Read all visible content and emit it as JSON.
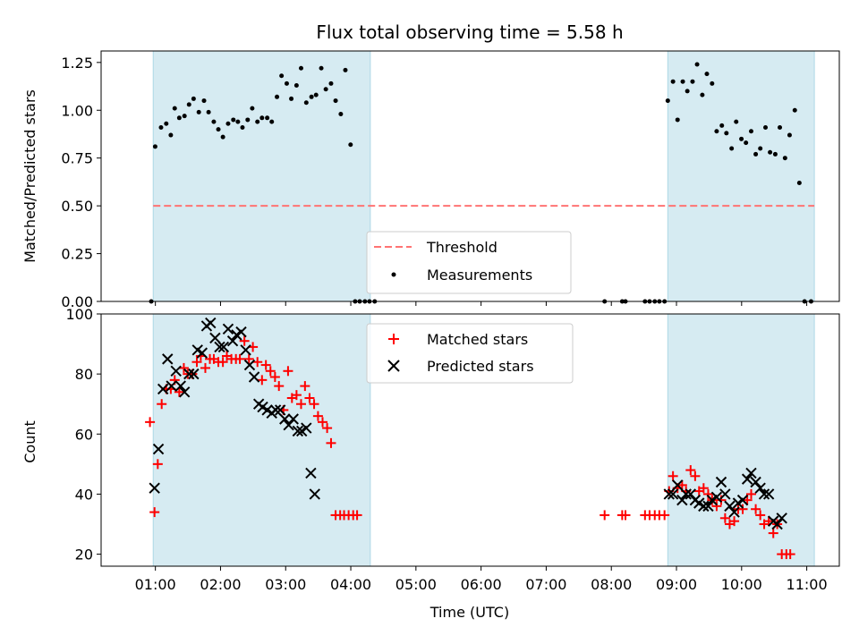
{
  "chart_data": [
    {
      "type": "scatter",
      "title": "Flux total observing time = 5.58 h",
      "ylabel": "Matched/Predicted stars",
      "xlim": [
        0.0,
        11.3333
      ],
      "ylim": [
        0.0,
        1.31
      ],
      "yticks": [
        "0.00",
        "0.25",
        "0.50",
        "0.75",
        "1.00",
        "1.25"
      ],
      "ytick_values": [
        0.0,
        0.25,
        0.5,
        0.75,
        1.0,
        1.25
      ],
      "shaded_spans": [
        [
          0.8,
          4.133
        ],
        [
          8.7,
          10.95
        ]
      ],
      "threshold": {
        "name": "Threshold",
        "value": 0.5,
        "x_range": [
          0.8,
          10.95
        ],
        "color": "#ff7373"
      },
      "legend": {
        "position": "lower center",
        "entries": [
          "Threshold",
          "Measurements"
        ]
      },
      "series": [
        {
          "name": "Measurements",
          "color": "#000000",
          "points": [
            [
              0.77,
              0.0
            ],
            [
              0.83,
              0.81
            ],
            [
              0.92,
              0.91
            ],
            [
              1.0,
              0.93
            ],
            [
              1.07,
              0.87
            ],
            [
              1.13,
              1.01
            ],
            [
              1.2,
              0.96
            ],
            [
              1.28,
              0.97
            ],
            [
              1.35,
              1.03
            ],
            [
              1.42,
              1.06
            ],
            [
              1.5,
              0.99
            ],
            [
              1.58,
              1.05
            ],
            [
              1.65,
              0.99
            ],
            [
              1.73,
              0.94
            ],
            [
              1.8,
              0.9
            ],
            [
              1.87,
              0.86
            ],
            [
              1.95,
              0.93
            ],
            [
              2.03,
              0.95
            ],
            [
              2.1,
              0.94
            ],
            [
              2.17,
              0.91
            ],
            [
              2.25,
              0.95
            ],
            [
              2.32,
              1.01
            ],
            [
              2.4,
              0.94
            ],
            [
              2.47,
              0.96
            ],
            [
              2.55,
              0.96
            ],
            [
              2.62,
              0.94
            ],
            [
              2.7,
              1.07
            ],
            [
              2.77,
              1.18
            ],
            [
              2.85,
              1.14
            ],
            [
              2.92,
              1.06
            ],
            [
              3.0,
              1.13
            ],
            [
              3.07,
              1.22
            ],
            [
              3.15,
              1.04
            ],
            [
              3.23,
              1.07
            ],
            [
              3.3,
              1.08
            ],
            [
              3.38,
              1.22
            ],
            [
              3.45,
              1.11
            ],
            [
              3.53,
              1.14
            ],
            [
              3.6,
              1.05
            ],
            [
              3.68,
              0.98
            ],
            [
              3.75,
              1.21
            ],
            [
              3.83,
              0.82
            ],
            [
              3.9,
              0.0
            ],
            [
              3.97,
              0.0
            ],
            [
              4.05,
              0.0
            ],
            [
              4.12,
              0.0
            ],
            [
              4.2,
              0.0
            ],
            [
              7.73,
              0.0
            ],
            [
              8.0,
              0.0
            ],
            [
              8.05,
              0.0
            ],
            [
              8.35,
              0.0
            ],
            [
              8.42,
              0.0
            ],
            [
              8.5,
              0.0
            ],
            [
              8.57,
              0.0
            ],
            [
              8.65,
              0.0
            ],
            [
              8.7,
              1.05
            ],
            [
              8.78,
              1.15
            ],
            [
              8.85,
              0.95
            ],
            [
              8.93,
              1.15
            ],
            [
              9.0,
              1.1
            ],
            [
              9.08,
              1.15
            ],
            [
              9.15,
              1.24
            ],
            [
              9.23,
              1.08
            ],
            [
              9.3,
              1.19
            ],
            [
              9.38,
              1.14
            ],
            [
              9.45,
              0.89
            ],
            [
              9.53,
              0.92
            ],
            [
              9.6,
              0.88
            ],
            [
              9.68,
              0.8
            ],
            [
              9.75,
              0.94
            ],
            [
              9.83,
              0.85
            ],
            [
              9.9,
              0.83
            ],
            [
              9.98,
              0.89
            ],
            [
              10.05,
              0.77
            ],
            [
              10.12,
              0.8
            ],
            [
              10.2,
              0.91
            ],
            [
              10.27,
              0.78
            ],
            [
              10.35,
              0.77
            ],
            [
              10.42,
              0.91
            ],
            [
              10.5,
              0.75
            ],
            [
              10.57,
              0.87
            ],
            [
              10.65,
              1.0
            ],
            [
              10.72,
              0.62
            ],
            [
              10.8,
              0.0
            ],
            [
              10.9,
              0.0
            ]
          ]
        }
      ]
    },
    {
      "type": "scatter",
      "xlabel": "Time (UTC)",
      "ylabel": "Count",
      "xlim": [
        0.0,
        11.3333
      ],
      "ylim": [
        16,
        100
      ],
      "yticks": [
        "20",
        "40",
        "60",
        "80",
        "100"
      ],
      "ytick_values": [
        20,
        40,
        60,
        80,
        100
      ],
      "xticks": [
        "01:00",
        "02:00",
        "03:00",
        "04:00",
        "05:00",
        "06:00",
        "07:00",
        "08:00",
        "09:00",
        "10:00",
        "11:00"
      ],
      "xtick_values": [
        0.8333,
        1.8333,
        2.8333,
        3.8333,
        4.8333,
        5.8333,
        6.8333,
        7.8333,
        8.8333,
        9.8333,
        10.8333
      ],
      "shaded_spans": [
        [
          0.8,
          4.133
        ],
        [
          8.7,
          10.95
        ]
      ],
      "legend": {
        "position": "upper center",
        "entries": [
          "Matched stars",
          "Predicted stars"
        ]
      },
      "series": [
        {
          "name": "Matched stars",
          "marker": "plus",
          "color": "#ff0000",
          "points": [
            [
              0.75,
              64
            ],
            [
              0.82,
              34
            ],
            [
              0.87,
              50
            ],
            [
              0.93,
              70
            ],
            [
              1.0,
              75
            ],
            [
              1.07,
              75
            ],
            [
              1.13,
              78
            ],
            [
              1.2,
              74
            ],
            [
              1.27,
              82
            ],
            [
              1.33,
              80
            ],
            [
              1.4,
              80
            ],
            [
              1.47,
              84
            ],
            [
              1.53,
              86
            ],
            [
              1.6,
              82
            ],
            [
              1.67,
              85
            ],
            [
              1.73,
              85
            ],
            [
              1.8,
              84
            ],
            [
              1.87,
              84
            ],
            [
              1.93,
              86
            ],
            [
              2.0,
              85
            ],
            [
              2.07,
              85
            ],
            [
              2.13,
              85
            ],
            [
              2.2,
              91
            ],
            [
              2.27,
              85
            ],
            [
              2.33,
              89
            ],
            [
              2.4,
              84
            ],
            [
              2.47,
              78
            ],
            [
              2.53,
              83
            ],
            [
              2.6,
              81
            ],
            [
              2.67,
              79
            ],
            [
              2.73,
              76
            ],
            [
              2.8,
              68
            ],
            [
              2.87,
              81
            ],
            [
              2.93,
              72
            ],
            [
              3.0,
              73
            ],
            [
              3.07,
              70
            ],
            [
              3.13,
              76
            ],
            [
              3.2,
              72
            ],
            [
              3.27,
              70
            ],
            [
              3.33,
              66
            ],
            [
              3.4,
              64
            ],
            [
              3.47,
              62
            ],
            [
              3.53,
              57
            ],
            [
              3.6,
              33
            ],
            [
              3.67,
              33
            ],
            [
              3.73,
              33
            ],
            [
              3.8,
              33
            ],
            [
              3.87,
              33
            ],
            [
              3.93,
              33
            ],
            [
              7.73,
              33
            ],
            [
              8.0,
              33
            ],
            [
              8.05,
              33
            ],
            [
              8.35,
              33
            ],
            [
              8.42,
              33
            ],
            [
              8.5,
              33
            ],
            [
              8.57,
              33
            ],
            [
              8.65,
              33
            ],
            [
              8.72,
              41
            ],
            [
              8.78,
              46
            ],
            [
              8.85,
              42
            ],
            [
              8.92,
              43
            ],
            [
              8.98,
              41
            ],
            [
              9.05,
              48
            ],
            [
              9.12,
              46
            ],
            [
              9.18,
              41
            ],
            [
              9.25,
              42
            ],
            [
              9.32,
              40
            ],
            [
              9.38,
              38
            ],
            [
              9.45,
              36
            ],
            [
              9.52,
              38
            ],
            [
              9.58,
              32
            ],
            [
              9.65,
              30
            ],
            [
              9.72,
              31
            ],
            [
              9.78,
              35
            ],
            [
              9.85,
              35
            ],
            [
              9.92,
              38
            ],
            [
              9.98,
              40
            ],
            [
              10.05,
              35
            ],
            [
              10.12,
              33
            ],
            [
              10.18,
              30
            ],
            [
              10.25,
              31
            ],
            [
              10.32,
              27
            ],
            [
              10.38,
              30
            ],
            [
              10.45,
              20
            ],
            [
              10.52,
              20
            ],
            [
              10.58,
              20
            ]
          ]
        },
        {
          "name": "Predicted stars",
          "marker": "x",
          "color": "#000000",
          "points": [
            [
              0.82,
              42
            ],
            [
              0.88,
              55
            ],
            [
              0.95,
              75
            ],
            [
              1.02,
              85
            ],
            [
              1.08,
              76
            ],
            [
              1.15,
              81
            ],
            [
              1.22,
              76
            ],
            [
              1.28,
              74
            ],
            [
              1.35,
              80
            ],
            [
              1.42,
              80
            ],
            [
              1.48,
              88
            ],
            [
              1.55,
              87
            ],
            [
              1.62,
              96
            ],
            [
              1.68,
              97
            ],
            [
              1.75,
              92
            ],
            [
              1.82,
              89
            ],
            [
              1.88,
              89
            ],
            [
              1.95,
              95
            ],
            [
              2.02,
              91
            ],
            [
              2.08,
              93
            ],
            [
              2.15,
              94
            ],
            [
              2.22,
              88
            ],
            [
              2.28,
              83
            ],
            [
              2.35,
              79
            ],
            [
              2.42,
              70
            ],
            [
              2.48,
              69
            ],
            [
              2.55,
              68
            ],
            [
              2.62,
              67
            ],
            [
              2.68,
              68
            ],
            [
              2.75,
              68
            ],
            [
              2.82,
              65
            ],
            [
              2.88,
              63
            ],
            [
              2.95,
              65
            ],
            [
              3.02,
              61
            ],
            [
              3.08,
              61
            ],
            [
              3.15,
              62
            ],
            [
              3.22,
              47
            ],
            [
              3.28,
              40
            ],
            [
              8.72,
              40
            ],
            [
              8.78,
              40
            ],
            [
              8.85,
              43
            ],
            [
              8.92,
              38
            ],
            [
              8.98,
              40
            ],
            [
              9.05,
              40
            ],
            [
              9.12,
              38
            ],
            [
              9.18,
              37
            ],
            [
              9.25,
              36
            ],
            [
              9.32,
              36
            ],
            [
              9.38,
              38
            ],
            [
              9.45,
              39
            ],
            [
              9.52,
              44
            ],
            [
              9.58,
              40
            ],
            [
              9.65,
              36
            ],
            [
              9.72,
              34
            ],
            [
              9.78,
              37
            ],
            [
              9.85,
              38
            ],
            [
              9.92,
              45
            ],
            [
              9.98,
              47
            ],
            [
              10.05,
              44
            ],
            [
              10.12,
              42
            ],
            [
              10.18,
              40
            ],
            [
              10.25,
              40
            ],
            [
              10.32,
              31
            ],
            [
              10.38,
              30
            ],
            [
              10.45,
              32
            ]
          ]
        }
      ]
    }
  ]
}
